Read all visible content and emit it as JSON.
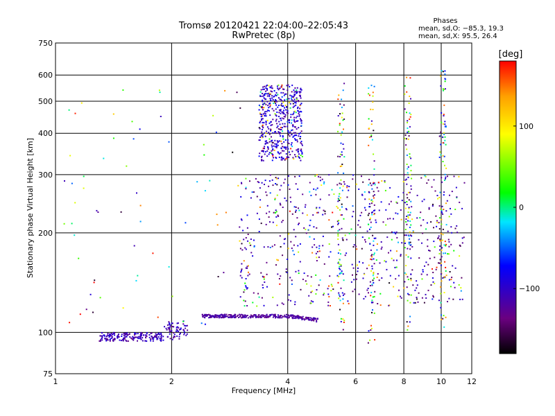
{
  "chart_data": {
    "type": "scatter",
    "title": "Tromsø 20120421 22:04:00–22:05:43",
    "subtitle": "RwPretec (8p)",
    "xlabel": "Frequency [MHz]",
    "ylabel": "Stationary phase Virtual Height [km]",
    "x_scale": "log",
    "y_scale": "log",
    "xlim": [
      1,
      12
    ],
    "ylim": [
      75,
      750
    ],
    "x_ticks": [
      "1",
      "2",
      "4",
      "6",
      "8",
      "10",
      "12"
    ],
    "y_ticks": [
      "75",
      "100",
      "200",
      "300",
      "400",
      "500",
      "600",
      "750"
    ],
    "grid": true,
    "phase_stats": {
      "title": "Phases",
      "line_o": "mean, sd,O: −85.3, 19.3",
      "line_x": "mean, sd,X:  95.5, 26.4"
    },
    "colorbar": {
      "label": "[deg]",
      "range": [
        -180,
        180
      ],
      "ticks": [
        "100",
        "0",
        "−100"
      ],
      "tick_values": [
        100,
        0,
        -100
      ],
      "colormap": "rainbow (black–purple–blue–cyan–green–yellow–red)"
    },
    "point_groups": [
      {
        "trace": "E-layer O-mode trace (blue)",
        "x_range": [
          1.3,
          2.2
        ],
        "height_km": 97,
        "phase_deg": -110
      },
      {
        "trace": "F-layer low trace (dark blue)",
        "x_range": [
          2.4,
          4.8
        ],
        "height_km": 112,
        "phase_deg": -120
      },
      {
        "trace": "F2 echo cluster (blue/mixed)",
        "x_center": 3.8,
        "height_range_km": [
          330,
          560
        ],
        "phase_deg": -100
      },
      {
        "trace": "Scattered echoes (mixed phase)",
        "x_range": [
          3.0,
          11.5
        ],
        "height_range_km": [
          120,
          300
        ],
        "phase_deg": "mixed"
      },
      {
        "trace": "Vertical stripe 5.5 MHz",
        "x": 5.5,
        "height_range_km": [
          100,
          580
        ],
        "phase_deg": "mixed"
      },
      {
        "trace": "Vertical stripe 6.6 MHz",
        "x": 6.6,
        "height_range_km": [
          90,
          570
        ],
        "phase_deg": "mixed"
      },
      {
        "trace": "Vertical stripe 8.2 MHz",
        "x": 8.2,
        "height_range_km": [
          100,
          590
        ],
        "phase_deg": "mixed"
      },
      {
        "trace": "Vertical stripe 10.1 MHz",
        "x": 10.1,
        "height_range_km": [
          100,
          630
        ],
        "phase_deg": "mixed"
      }
    ]
  }
}
